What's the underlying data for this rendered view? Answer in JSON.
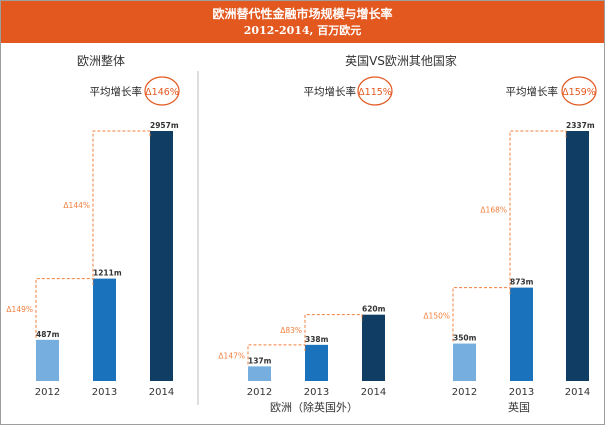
{
  "header": {
    "title": "欧洲替代性金融市场规模与增长率",
    "subtitle": "2012-2014, 百万欧元"
  },
  "colors": {
    "banner": "#e2581f",
    "bar_2012": "#76aee0",
    "bar_2013": "#1a72bd",
    "bar_2014": "#0f3d63",
    "growth_line": "#f07f3c",
    "avg_badge": "#e2581f"
  },
  "chart_data": [
    {
      "type": "bar",
      "panel_title": "欧洲整体",
      "avg_label": "平均增长率",
      "avg_growth": "Δ146%",
      "categories": [
        "2012",
        "2013",
        "2014"
      ],
      "values": [
        487,
        1211,
        2957
      ],
      "value_labels": [
        "487m",
        "1211m",
        "2957m"
      ],
      "growth_labels": [
        "Δ149%",
        "Δ144%"
      ],
      "unit": "m"
    },
    {
      "type": "bar",
      "panel_title": "英国VS欧洲其他国家",
      "groups": [
        {
          "name": "欧洲（除英国外）",
          "avg_label": "平均增长率",
          "avg_growth": "Δ115%",
          "categories": [
            "2012",
            "2013",
            "2014"
          ],
          "values": [
            137,
            338,
            620
          ],
          "value_labels": [
            "137m",
            "338m",
            "620m"
          ],
          "growth_labels": [
            "Δ147%",
            "Δ83%"
          ]
        },
        {
          "name": "英国",
          "avg_label": "平均增长率",
          "avg_growth": "Δ159%",
          "categories": [
            "2012",
            "2013",
            "2014"
          ],
          "values": [
            350,
            873,
            2337
          ],
          "value_labels": [
            "350m",
            "873m",
            "2337m"
          ],
          "growth_labels": [
            "Δ150%",
            "Δ168%"
          ]
        }
      ]
    }
  ]
}
